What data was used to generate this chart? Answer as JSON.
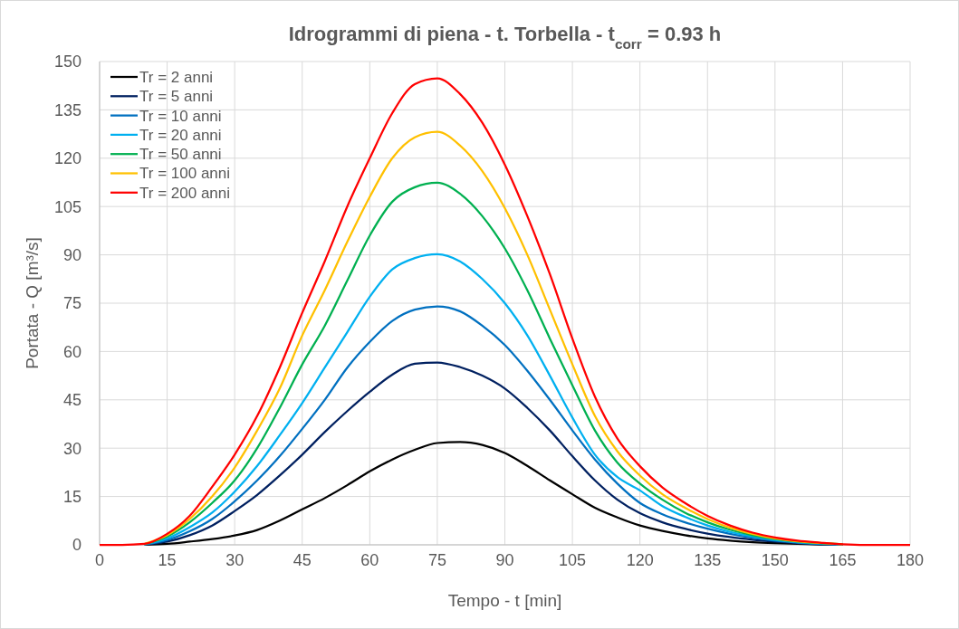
{
  "chart_data": {
    "type": "line",
    "title": "Idrogrammi di piena - t. Torbella - t$_{corr}$ = 0.93 h",
    "xlabel": "Tempo - t [min]",
    "ylabel": "Portata - Q [m³/s]",
    "x": [
      0,
      5,
      10,
      15,
      20,
      25,
      30,
      35,
      40,
      45,
      50,
      55,
      60,
      65,
      70,
      75,
      80,
      85,
      90,
      95,
      100,
      105,
      110,
      115,
      120,
      125,
      130,
      135,
      140,
      145,
      150,
      155,
      160,
      165,
      170,
      175,
      180
    ],
    "xlim": [
      0,
      180
    ],
    "xticks": [
      0,
      15,
      30,
      45,
      60,
      75,
      90,
      105,
      120,
      135,
      150,
      165,
      180
    ],
    "ylim": [
      0,
      150
    ],
    "yticks": [
      0,
      15,
      30,
      45,
      60,
      75,
      90,
      105,
      120,
      135,
      150
    ],
    "grid": true,
    "legend": "top left",
    "marker": "none",
    "line_style": "solid",
    "series": [
      {
        "name": "Tr = 2 anni",
        "color": "#000000",
        "values": [
          null,
          null,
          0,
          0.3,
          1,
          1.8,
          2.9,
          4.6,
          7.5,
          11,
          14.5,
          18.5,
          22.8,
          26.5,
          29.5,
          31.6,
          31.9,
          31,
          28.5,
          24.5,
          20,
          15.7,
          11.5,
          8.5,
          6,
          4.3,
          3,
          2,
          1.3,
          0.8,
          0.5,
          0.3,
          0.1,
          0,
          null,
          null,
          null
        ]
      },
      {
        "name": "Tr = 5 anni",
        "color": "#002060",
        "values": [
          null,
          null,
          0.1,
          1,
          3,
          6,
          10.5,
          15.5,
          21.5,
          28,
          35,
          41.5,
          47.5,
          52.8,
          56.2,
          56.6,
          55.2,
          52.5,
          48.5,
          42.5,
          35.5,
          27.5,
          20,
          14,
          9.8,
          7,
          5,
          3.5,
          2.4,
          1.6,
          1,
          0.5,
          0.2,
          0.1,
          null,
          null,
          null
        ]
      },
      {
        "name": "Tr = 10 anni",
        "color": "#0070c0",
        "values": [
          null,
          null,
          0.1,
          1.5,
          4.2,
          8,
          13.5,
          20,
          27.5,
          36,
          45,
          55,
          63,
          69.5,
          73,
          74,
          72.5,
          68,
          62,
          54,
          45,
          35.5,
          26.5,
          19,
          13,
          9.5,
          7,
          5,
          3.4,
          2.2,
          1.3,
          0.7,
          0.3,
          0.1,
          null,
          null,
          null
        ]
      },
      {
        "name": "Tr = 20 anni",
        "color": "#00b0f0",
        "values": [
          null,
          null,
          0.2,
          2,
          5.5,
          10,
          16.5,
          24.5,
          34,
          44,
          55,
          66,
          77,
          85.5,
          89,
          90.2,
          88,
          82.5,
          75,
          65,
          52.5,
          39.5,
          28,
          21,
          16.9,
          12,
          8.7,
          6,
          4,
          2.6,
          1.5,
          0.8,
          0.4,
          0.1,
          null,
          null,
          null
        ]
      },
      {
        "name": "Tr = 50 anni",
        "color": "#00b050",
        "values": [
          null,
          null,
          0.2,
          2.6,
          7,
          13,
          20,
          30,
          42.5,
          56,
          68,
          82,
          96,
          106.5,
          111,
          112.4,
          109,
          102,
          92,
          79,
          64,
          49.5,
          35.5,
          25.5,
          19,
          14,
          10,
          7,
          4.7,
          3,
          1.8,
          1,
          0.5,
          0.2,
          null,
          null,
          null
        ]
      },
      {
        "name": "Tr = 100 anni",
        "color": "#ffc000",
        "values": [
          null,
          null,
          0.3,
          3,
          8,
          15,
          24,
          35.5,
          48.5,
          65,
          79,
          94,
          108,
          120,
          126.5,
          128.2,
          124,
          116,
          104.5,
          90,
          73,
          56,
          40,
          29,
          21.5,
          15.7,
          11.5,
          8,
          5.3,
          3.4,
          2,
          1.1,
          0.6,
          0.2,
          null,
          null,
          null
        ]
      },
      {
        "name": "Tr = 200 anni",
        "color": "#ff0000",
        "values": [
          0,
          0,
          0.3,
          3.4,
          9,
          18,
          28,
          40,
          55,
          72,
          88,
          105,
          120,
          134,
          143,
          144.8,
          140,
          131,
          118,
          102,
          84,
          64,
          46,
          33,
          24.4,
          17.8,
          13,
          9,
          6,
          3.8,
          2.3,
          1.3,
          0.7,
          0.2,
          0,
          0,
          0
        ]
      }
    ]
  }
}
